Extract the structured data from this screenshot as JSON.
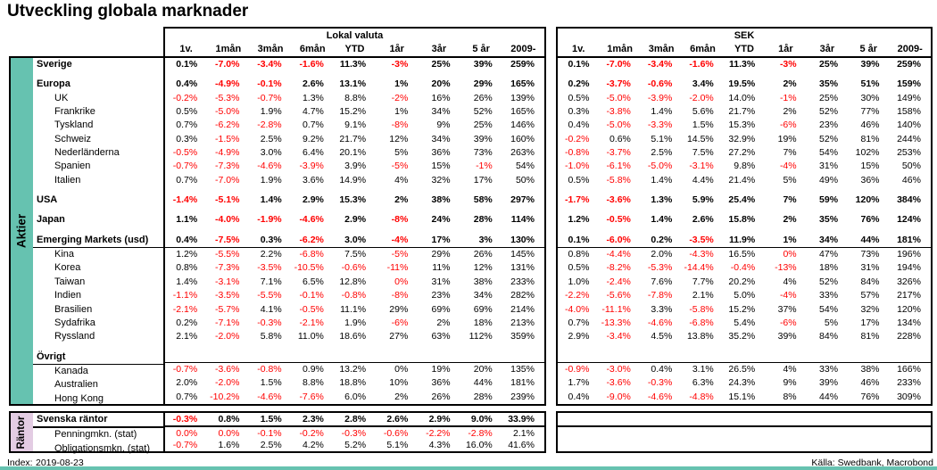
{
  "title": "Utveckling globala marknader",
  "groups": {
    "local_label": "Lokal valuta",
    "sek_label": "SEK"
  },
  "columns": [
    "1v.",
    "1mån",
    "3mån",
    "6mån",
    "YTD",
    "1år",
    "3år",
    "5 år",
    "2009-"
  ],
  "section_labels": {
    "aktier": "Aktier",
    "rantor": "Räntor"
  },
  "colors": {
    "teal": "#66C2B0",
    "lavender": "#E3CCE3",
    "negative": "#FF0000",
    "text": "#000000",
    "border": "#000000"
  },
  "footer": {
    "index_label": "Index:",
    "index_date": "2019-08-23",
    "source": "Källa: Swedbank, Macrobond"
  },
  "rows": [
    {
      "label": "Sverige",
      "section": "aktier",
      "bold": true,
      "indent": false,
      "local": [
        "0.1%",
        "-7.0%",
        "-3.4%",
        "-1.6%",
        "11.3%",
        "-3%",
        "25%",
        "39%",
        "259%"
      ],
      "local_red": [
        1,
        2,
        3,
        5
      ],
      "sek": [
        "0.1%",
        "-7.0%",
        "-3.4%",
        "-1.6%",
        "11.3%",
        "-3%",
        "25%",
        "39%",
        "259%"
      ],
      "sek_red": [
        1,
        2,
        3,
        5
      ]
    },
    {
      "label": "Europa",
      "section": "aktier",
      "bold": true,
      "indent": false,
      "gap_before": true,
      "local": [
        "0.4%",
        "-4.9%",
        "-0.1%",
        "2.6%",
        "13.1%",
        "1%",
        "20%",
        "29%",
        "165%"
      ],
      "local_red": [
        1,
        2
      ],
      "sek": [
        "0.2%",
        "-3.7%",
        "-0.6%",
        "3.4%",
        "19.5%",
        "2%",
        "35%",
        "51%",
        "159%"
      ],
      "sek_red": [
        1,
        2
      ]
    },
    {
      "label": "UK",
      "section": "aktier",
      "bold": false,
      "indent": true,
      "local": [
        "-0.2%",
        "-5.3%",
        "-0.7%",
        "1.3%",
        "8.8%",
        "-2%",
        "16%",
        "26%",
        "139%"
      ],
      "local_red": [
        0,
        1,
        2,
        5
      ],
      "sek": [
        "0.5%",
        "-5.0%",
        "-3.9%",
        "-2.0%",
        "14.0%",
        "-1%",
        "25%",
        "30%",
        "149%"
      ],
      "sek_red": [
        1,
        2,
        3,
        5
      ]
    },
    {
      "label": "Frankrike",
      "section": "aktier",
      "bold": false,
      "indent": true,
      "local": [
        "0.5%",
        "-5.0%",
        "1.9%",
        "4.7%",
        "15.2%",
        "1%",
        "34%",
        "52%",
        "165%"
      ],
      "local_red": [
        1
      ],
      "sek": [
        "0.3%",
        "-3.8%",
        "1.4%",
        "5.6%",
        "21.7%",
        "2%",
        "52%",
        "77%",
        "158%"
      ],
      "sek_red": [
        1
      ]
    },
    {
      "label": "Tyskland",
      "section": "aktier",
      "bold": false,
      "indent": true,
      "local": [
        "0.7%",
        "-6.2%",
        "-2.8%",
        "0.7%",
        "9.1%",
        "-8%",
        "9%",
        "25%",
        "146%"
      ],
      "local_red": [
        1,
        2,
        5
      ],
      "sek": [
        "0.4%",
        "-5.0%",
        "-3.3%",
        "1.5%",
        "15.3%",
        "-6%",
        "23%",
        "46%",
        "140%"
      ],
      "sek_red": [
        1,
        2,
        5
      ]
    },
    {
      "label": "Schweiz",
      "section": "aktier",
      "bold": false,
      "indent": true,
      "local": [
        "0.3%",
        "-1.5%",
        "2.5%",
        "9.2%",
        "21.7%",
        "12%",
        "34%",
        "39%",
        "160%"
      ],
      "local_red": [
        1
      ],
      "sek": [
        "-0.2%",
        "0.6%",
        "5.1%",
        "14.5%",
        "32.9%",
        "19%",
        "52%",
        "81%",
        "244%"
      ],
      "sek_red": [
        0
      ]
    },
    {
      "label": "Nederländerna",
      "section": "aktier",
      "bold": false,
      "indent": true,
      "local": [
        "-0.5%",
        "-4.9%",
        "3.0%",
        "6.4%",
        "20.1%",
        "5%",
        "36%",
        "73%",
        "263%"
      ],
      "local_red": [
        0,
        1
      ],
      "sek": [
        "-0.8%",
        "-3.7%",
        "2.5%",
        "7.5%",
        "27.2%",
        "7%",
        "54%",
        "102%",
        "253%"
      ],
      "sek_red": [
        0,
        1
      ]
    },
    {
      "label": "Spanien",
      "section": "aktier",
      "bold": false,
      "indent": true,
      "local": [
        "-0.7%",
        "-7.3%",
        "-4.6%",
        "-3.9%",
        "3.9%",
        "-5%",
        "15%",
        "-1%",
        "54%"
      ],
      "local_red": [
        0,
        1,
        2,
        3,
        5,
        7
      ],
      "sek": [
        "-1.0%",
        "-6.1%",
        "-5.0%",
        "-3.1%",
        "9.8%",
        "-4%",
        "31%",
        "15%",
        "50%"
      ],
      "sek_red": [
        0,
        1,
        2,
        3,
        5
      ]
    },
    {
      "label": "Italien",
      "section": "aktier",
      "bold": false,
      "indent": true,
      "local": [
        "0.7%",
        "-7.0%",
        "1.9%",
        "3.6%",
        "14.9%",
        "4%",
        "32%",
        "17%",
        "50%"
      ],
      "local_red": [
        1
      ],
      "sek": [
        "0.5%",
        "-5.8%",
        "1.4%",
        "4.4%",
        "21.4%",
        "5%",
        "49%",
        "36%",
        "46%"
      ],
      "sek_red": [
        1
      ]
    },
    {
      "label": "USA",
      "section": "aktier",
      "bold": true,
      "indent": false,
      "gap_before": true,
      "local": [
        "-1.4%",
        "-5.1%",
        "1.4%",
        "2.9%",
        "15.3%",
        "2%",
        "38%",
        "58%",
        "297%"
      ],
      "local_red": [
        0,
        1
      ],
      "sek": [
        "-1.7%",
        "-3.6%",
        "1.3%",
        "5.9%",
        "25.4%",
        "7%",
        "59%",
        "120%",
        "384%"
      ],
      "sek_red": [
        0,
        1
      ]
    },
    {
      "label": "Japan",
      "section": "aktier",
      "bold": true,
      "indent": false,
      "gap_before": true,
      "local": [
        "1.1%",
        "-4.0%",
        "-1.9%",
        "-4.6%",
        "2.9%",
        "-8%",
        "24%",
        "28%",
        "114%"
      ],
      "local_red": [
        1,
        2,
        3,
        5
      ],
      "sek": [
        "1.2%",
        "-0.5%",
        "1.4%",
        "2.6%",
        "15.8%",
        "2%",
        "35%",
        "76%",
        "124%"
      ],
      "sek_red": [
        1
      ]
    },
    {
      "label": "Emerging Markets (usd)",
      "section": "aktier",
      "bold": true,
      "indent": false,
      "gap_before": true,
      "rule_below": true,
      "local": [
        "0.4%",
        "-7.5%",
        "0.3%",
        "-6.2%",
        "3.0%",
        "-4%",
        "17%",
        "3%",
        "130%"
      ],
      "local_red": [
        1,
        3,
        5
      ],
      "sek": [
        "0.1%",
        "-6.0%",
        "0.2%",
        "-3.5%",
        "11.9%",
        "1%",
        "34%",
        "44%",
        "181%"
      ],
      "sek_red": [
        1,
        3
      ]
    },
    {
      "label": "Kina",
      "section": "aktier",
      "bold": false,
      "indent": true,
      "local": [
        "1.2%",
        "-5.5%",
        "2.2%",
        "-6.8%",
        "7.5%",
        "-5%",
        "29%",
        "26%",
        "145%"
      ],
      "local_red": [
        1,
        3,
        5
      ],
      "sek": [
        "0.8%",
        "-4.4%",
        "2.0%",
        "-4.3%",
        "16.5%",
        "0%",
        "47%",
        "73%",
        "196%"
      ],
      "sek_red": [
        1,
        3,
        5
      ]
    },
    {
      "label": "Korea",
      "section": "aktier",
      "bold": false,
      "indent": true,
      "local": [
        "0.8%",
        "-7.3%",
        "-3.5%",
        "-10.5%",
        "-0.6%",
        "-11%",
        "11%",
        "12%",
        "131%"
      ],
      "local_red": [
        1,
        2,
        3,
        4,
        5
      ],
      "sek": [
        "0.5%",
        "-8.2%",
        "-5.3%",
        "-14.4%",
        "-0.4%",
        "-13%",
        "18%",
        "31%",
        "194%"
      ],
      "sek_red": [
        1,
        2,
        3,
        4,
        5
      ]
    },
    {
      "label": "Taiwan",
      "section": "aktier",
      "bold": false,
      "indent": true,
      "local": [
        "1.4%",
        "-3.1%",
        "7.1%",
        "6.5%",
        "12.8%",
        "0%",
        "31%",
        "38%",
        "233%"
      ],
      "local_red": [
        1,
        5
      ],
      "sek": [
        "1.0%",
        "-2.4%",
        "7.6%",
        "7.7%",
        "20.2%",
        "4%",
        "52%",
        "84%",
        "326%"
      ],
      "sek_red": [
        1
      ]
    },
    {
      "label": "Indien",
      "section": "aktier",
      "bold": false,
      "indent": true,
      "local": [
        "-1.1%",
        "-3.5%",
        "-5.5%",
        "-0.1%",
        "-0.8%",
        "-8%",
        "23%",
        "34%",
        "282%"
      ],
      "local_red": [
        0,
        1,
        2,
        3,
        4,
        5
      ],
      "sek": [
        "-2.2%",
        "-5.6%",
        "-7.8%",
        "2.1%",
        "5.0%",
        "-4%",
        "33%",
        "57%",
        "217%"
      ],
      "sek_red": [
        0,
        1,
        2,
        5
      ]
    },
    {
      "label": "Brasilien",
      "section": "aktier",
      "bold": false,
      "indent": true,
      "local": [
        "-2.1%",
        "-5.7%",
        "4.1%",
        "-0.5%",
        "11.1%",
        "29%",
        "69%",
        "69%",
        "214%"
      ],
      "local_red": [
        0,
        1,
        3
      ],
      "sek": [
        "-4.0%",
        "-11.1%",
        "3.3%",
        "-5.8%",
        "15.2%",
        "37%",
        "54%",
        "32%",
        "120%"
      ],
      "sek_red": [
        0,
        1,
        3
      ]
    },
    {
      "label": "Sydafrika",
      "section": "aktier",
      "bold": false,
      "indent": true,
      "local": [
        "0.2%",
        "-7.1%",
        "-0.3%",
        "-2.1%",
        "1.9%",
        "-6%",
        "2%",
        "18%",
        "213%"
      ],
      "local_red": [
        1,
        2,
        3,
        5
      ],
      "sek": [
        "0.7%",
        "-13.3%",
        "-4.6%",
        "-6.8%",
        "5.4%",
        "-6%",
        "5%",
        "17%",
        "134%"
      ],
      "sek_red": [
        1,
        2,
        3,
        5
      ]
    },
    {
      "label": "Ryssland",
      "section": "aktier",
      "bold": false,
      "indent": true,
      "local": [
        "2.1%",
        "-2.0%",
        "5.8%",
        "11.0%",
        "18.6%",
        "27%",
        "63%",
        "112%",
        "359%"
      ],
      "local_red": [
        1
      ],
      "sek": [
        "2.9%",
        "-3.4%",
        "4.5%",
        "13.8%",
        "35.2%",
        "39%",
        "84%",
        "81%",
        "228%"
      ],
      "sek_red": [
        1
      ]
    },
    {
      "label": "Övrigt",
      "section": "aktier",
      "bold": true,
      "indent": false,
      "gap_before": true,
      "rule_below": true,
      "local": [],
      "local_red": [],
      "sek": [],
      "sek_red": []
    },
    {
      "label": "Kanada",
      "section": "aktier",
      "bold": false,
      "indent": true,
      "local": [
        "-0.7%",
        "-3.6%",
        "-0.8%",
        "0.9%",
        "13.2%",
        "0%",
        "19%",
        "20%",
        "135%"
      ],
      "local_red": [
        0,
        1,
        2
      ],
      "sek": [
        "-0.9%",
        "-3.0%",
        "0.4%",
        "3.1%",
        "26.5%",
        "4%",
        "33%",
        "38%",
        "166%"
      ],
      "sek_red": [
        0,
        1
      ]
    },
    {
      "label": "Australien",
      "section": "aktier",
      "bold": false,
      "indent": true,
      "local": [
        "2.0%",
        "-2.0%",
        "1.5%",
        "8.8%",
        "18.8%",
        "10%",
        "36%",
        "44%",
        "181%"
      ],
      "local_red": [
        1
      ],
      "sek": [
        "1.7%",
        "-3.6%",
        "-0.3%",
        "6.3%",
        "24.3%",
        "9%",
        "39%",
        "46%",
        "233%"
      ],
      "sek_red": [
        1,
        2
      ]
    },
    {
      "label": "Hong Kong",
      "section": "aktier",
      "bold": false,
      "indent": true,
      "local": [
        "0.7%",
        "-10.2%",
        "-4.6%",
        "-7.6%",
        "6.0%",
        "2%",
        "26%",
        "28%",
        "239%"
      ],
      "local_red": [
        1,
        2,
        3
      ],
      "sek": [
        "0.4%",
        "-9.0%",
        "-4.6%",
        "-4.8%",
        "15.1%",
        "8%",
        "44%",
        "76%",
        "309%"
      ],
      "sek_red": [
        1,
        2,
        3
      ]
    },
    {
      "label": "Svenska räntor",
      "section": "rantor",
      "bold": true,
      "indent": false,
      "rule2_below": true,
      "local": [
        "-0.3%",
        "0.8%",
        "1.5%",
        "2.3%",
        "2.8%",
        "2.6%",
        "2.9%",
        "9.0%",
        "33.9%"
      ],
      "local_red": [
        0
      ],
      "sek": [],
      "sek_red": []
    },
    {
      "label": "Penningmkn. (stat)",
      "section": "rantor",
      "bold": false,
      "indent": true,
      "local": [
        "0.0%",
        "0.0%",
        "-0.1%",
        "-0.2%",
        "-0.3%",
        "-0.6%",
        "-2.2%",
        "-2.8%",
        "2.1%"
      ],
      "local_red": [
        0,
        1,
        2,
        3,
        4,
        5,
        6,
        7
      ],
      "sek": [],
      "sek_red": []
    },
    {
      "label": "Obligationsmkn. (stat)",
      "section": "rantor",
      "bold": false,
      "indent": true,
      "local": [
        "-0.7%",
        "1.6%",
        "2.5%",
        "4.2%",
        "5.2%",
        "5.1%",
        "4.3%",
        "16.0%",
        "41.6%"
      ],
      "local_red": [
        0
      ],
      "sek": [],
      "sek_red": []
    }
  ]
}
